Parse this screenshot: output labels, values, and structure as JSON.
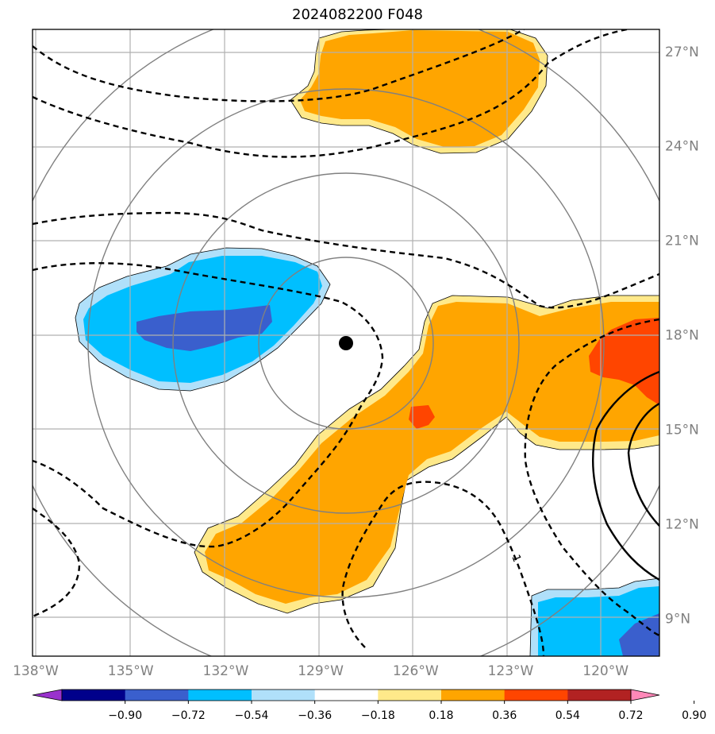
{
  "title": "2024082200 F048",
  "chart_data": {
    "type": "heatmap",
    "title": "2024082200 F048",
    "xlim": [
      -138.1,
      -118.3
    ],
    "ylim": [
      7.8,
      27.7
    ],
    "lon_ticks": [
      {
        "value": -138,
        "label": "138°W"
      },
      {
        "value": -135,
        "label": "135°W"
      },
      {
        "value": -132,
        "label": "132°W"
      },
      {
        "value": -129,
        "label": "129°W"
      },
      {
        "value": -126,
        "label": "126°W"
      },
      {
        "value": -123,
        "label": "123°W"
      },
      {
        "value": -120,
        "label": "120°W"
      }
    ],
    "lat_ticks": [
      {
        "value": 27,
        "label": "27°N"
      },
      {
        "value": 24,
        "label": "24°N"
      },
      {
        "value": 21,
        "label": "21°N"
      },
      {
        "value": 18,
        "label": "18°N"
      },
      {
        "value": 15,
        "label": "15°N"
      },
      {
        "value": 12,
        "label": "12°N"
      },
      {
        "value": 9,
        "label": "9°N"
      }
    ],
    "grid": true,
    "center": {
      "lon": -128.2,
      "lat": 17.7
    },
    "range_rings_deg": [
      2.8,
      5.5,
      8.2,
      11.0
    ],
    "colorbar": {
      "orientation": "horizontal",
      "extend": "both",
      "ticks": [
        "−0.90",
        "−0.72",
        "−0.54",
        "−0.36",
        "−0.18",
        "0.18",
        "0.36",
        "0.54",
        "0.72",
        "0.90"
      ],
      "colors": [
        "#9932cc",
        "#00008b",
        "#3a5fcd",
        "#00bfff",
        "#b0e0fa",
        "#ffffff",
        "#ffe98a",
        "#ffa500",
        "#ff4500",
        "#b22222",
        "#ff88b8"
      ]
    },
    "contour_label": "1"
  }
}
